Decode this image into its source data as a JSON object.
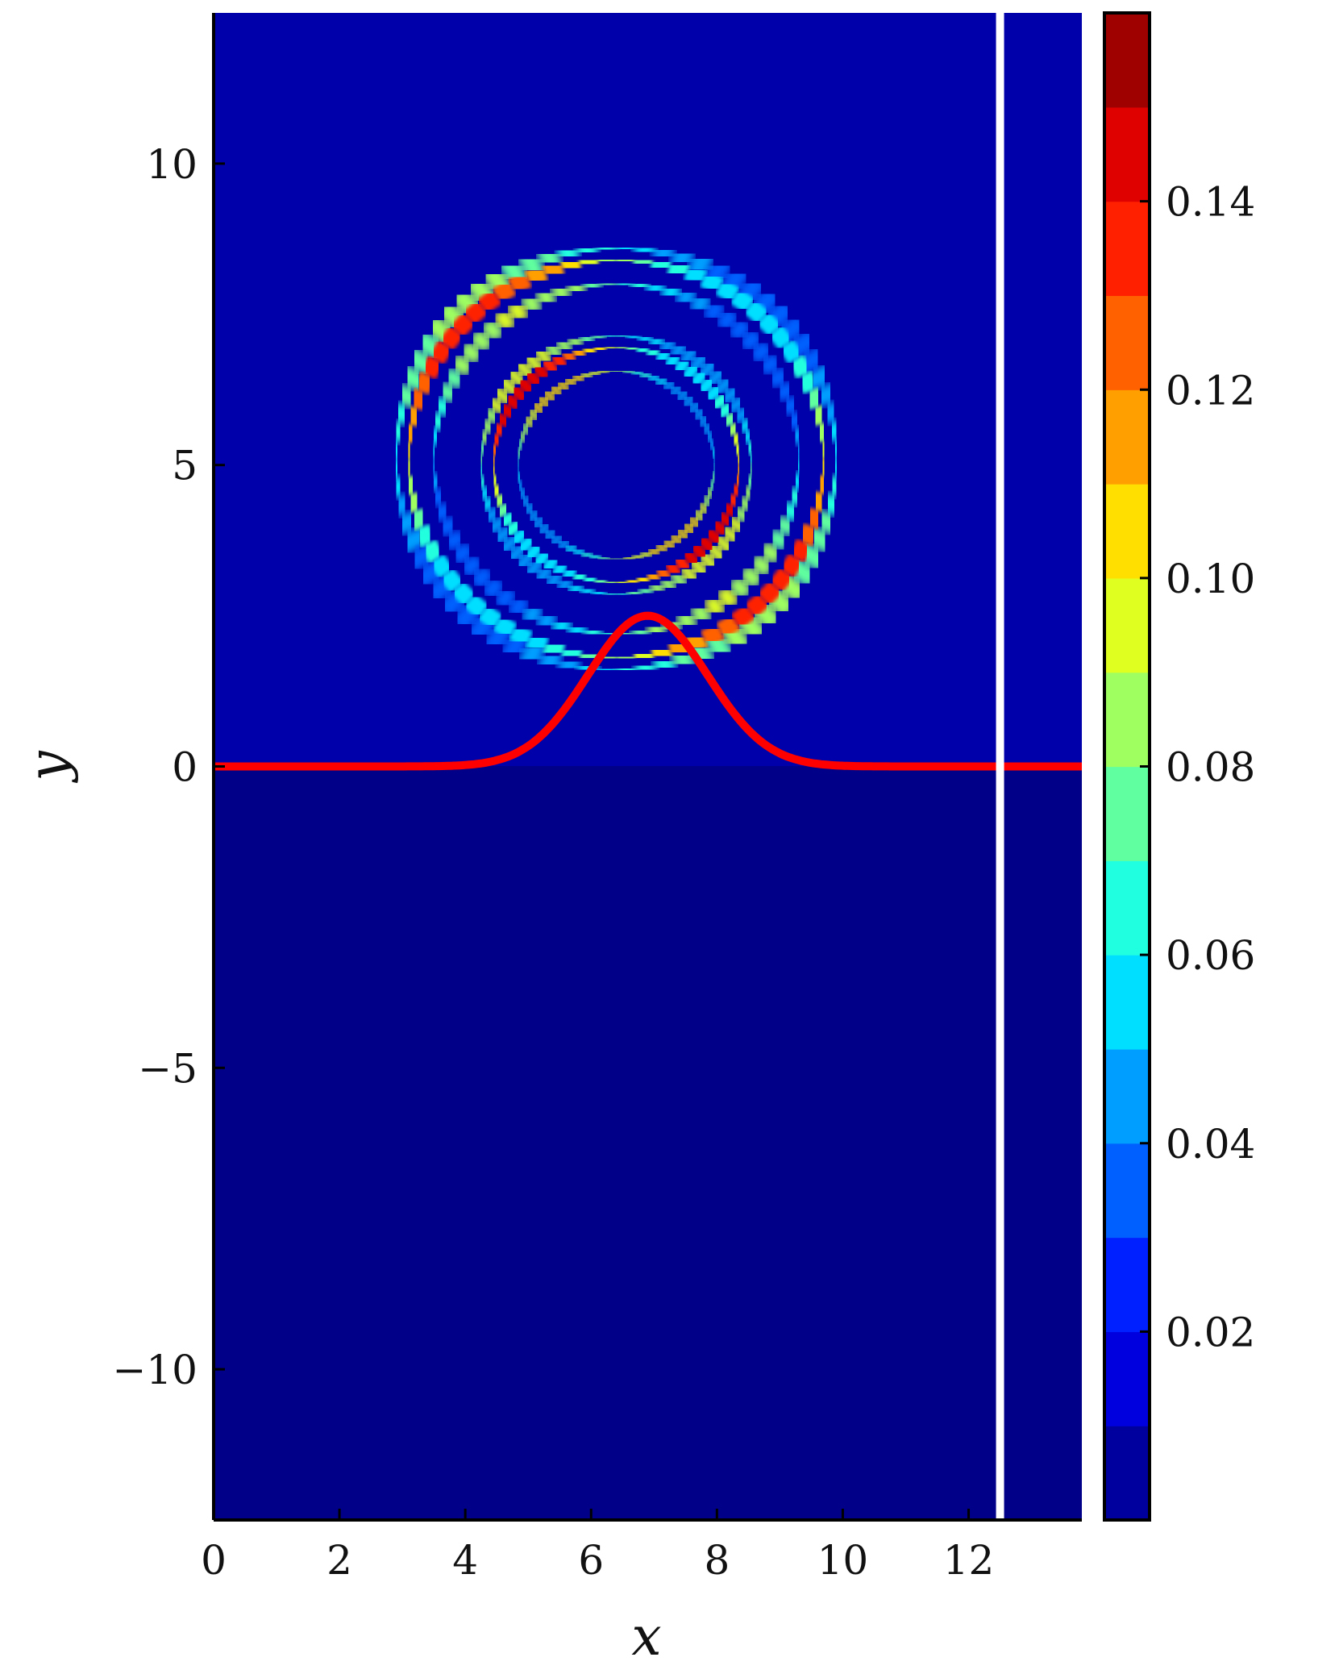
{
  "chart_data": {
    "type": "heatmap",
    "title": "",
    "xlabel": "x",
    "ylabel": "y",
    "xlim": [
      0,
      13.8
    ],
    "ylim": [
      -12.5,
      12.5
    ],
    "x_ticks": [
      "0",
      "2",
      "4",
      "6",
      "8",
      "10",
      "12"
    ],
    "x_tick_values": [
      0,
      2,
      4,
      6,
      8,
      10,
      12
    ],
    "y_ticks": [
      "10",
      "5",
      "0",
      "−5",
      "−10"
    ],
    "y_tick_values": [
      10,
      5,
      0,
      -5,
      -10
    ],
    "grid": false,
    "colorscale": "jet",
    "colorbar": {
      "min": 0,
      "max": 0.16,
      "levels": 16,
      "ticks": [
        "0.02",
        "0.04",
        "0.06",
        "0.08",
        "0.10",
        "0.12",
        "0.14"
      ],
      "tick_values": [
        0.02,
        0.04,
        0.06,
        0.08,
        0.1,
        0.12,
        0.14
      ]
    },
    "vertical_line_x": 12.5,
    "interface_curve": {
      "color": "#ff0000",
      "description_points": [
        {
          "x": 0,
          "y": 0
        },
        {
          "x": 4,
          "y": 0.02
        },
        {
          "x": 5,
          "y": 0.5
        },
        {
          "x": 6,
          "y": 1.9
        },
        {
          "x": 6.9,
          "y": 2.5
        },
        {
          "x": 8,
          "y": 1.6
        },
        {
          "x": 9,
          "y": 0.3
        },
        {
          "x": 10,
          "y": 0.02
        },
        {
          "x": 13.8,
          "y": 0
        }
      ],
      "peak_x": 6.9,
      "peak_y": 2.5
    },
    "field_features": {
      "outer_ring": {
        "center": [
          6.4,
          5.1
        ],
        "radius": 3.3,
        "peak_value": 0.14
      },
      "inner_ring": {
        "center": [
          6.4,
          5.0
        ],
        "radius": 1.95,
        "peak_value": 0.15
      }
    }
  }
}
